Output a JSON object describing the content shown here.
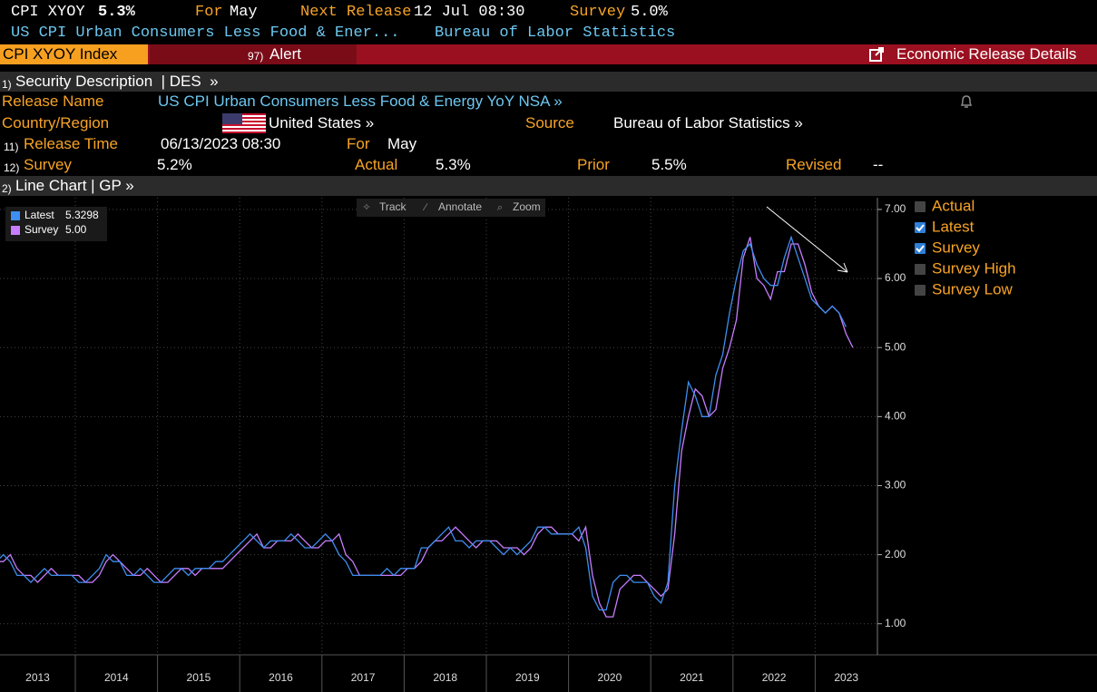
{
  "header": {
    "ticker": "CPI XYOY",
    "last": "5.3%",
    "for_label": "For",
    "for_value": "May",
    "next_release_label": "Next Release",
    "next_release_value": "12 Jul 08:30",
    "survey_label": "Survey",
    "survey_value": "5.0%",
    "name": "US CPI Urban Consumers Less Food & Ener...",
    "source": "Bureau of Labor Statistics"
  },
  "tabs": {
    "security": "CPI XYOY Index",
    "alert_num": "97)",
    "alert": "Alert",
    "details": "Economic Release Details"
  },
  "section1": {
    "num": "1)",
    "title": "Security Description  | DES  »"
  },
  "fields": {
    "release_name_label": "Release Name",
    "release_name_value": "US CPI Urban Consumers Less Food & Energy YoY NSA »",
    "country_label": "Country/Region",
    "country_value": "United States »",
    "source_label": "Source",
    "source_value": "Bureau of Labor Statistics »",
    "release_time_num": "11)",
    "release_time_label": "Release Time",
    "release_time_value": "06/13/2023 08:30",
    "for_label": "For",
    "for_value": "May",
    "survey_num": "12)",
    "survey_label": "Survey",
    "survey_value": "5.2%",
    "actual_label": "Actual",
    "actual_value": "5.3%",
    "prior_label": "Prior",
    "prior_value": "5.5%",
    "revised_label": "Revised",
    "revised_value": "--"
  },
  "section2": {
    "num": "2)",
    "title": "Line Chart | GP »"
  },
  "toolbar": [
    "Track",
    "Annotate",
    "Zoom"
  ],
  "chart_data": {
    "type": "line",
    "x_labels": [
      "2013",
      "2014",
      "2015",
      "2016",
      "2017",
      "2018",
      "2019",
      "2020",
      "2021",
      "2022",
      "2023"
    ],
    "series": [
      {
        "name": "Latest",
        "legend_value": "5.3298",
        "color": "#3d8ef0",
        "values": [
          1.9,
          2.0,
          1.9,
          1.7,
          1.7,
          1.6,
          1.7,
          1.8,
          1.7,
          1.7,
          1.7,
          1.7,
          1.6,
          1.6,
          1.7,
          1.8,
          2.0,
          1.9,
          1.9,
          1.7,
          1.7,
          1.8,
          1.7,
          1.6,
          1.6,
          1.7,
          1.8,
          1.8,
          1.7,
          1.8,
          1.8,
          1.8,
          1.9,
          1.9,
          2.0,
          2.1,
          2.2,
          2.3,
          2.2,
          2.1,
          2.2,
          2.2,
          2.2,
          2.3,
          2.2,
          2.1,
          2.1,
          2.2,
          2.3,
          2.2,
          2.0,
          1.9,
          1.7,
          1.7,
          1.7,
          1.7,
          1.7,
          1.8,
          1.7,
          1.8,
          1.8,
          1.8,
          2.1,
          2.1,
          2.2,
          2.3,
          2.4,
          2.2,
          2.2,
          2.1,
          2.2,
          2.2,
          2.2,
          2.1,
          2.0,
          2.1,
          2.0,
          2.1,
          2.2,
          2.4,
          2.4,
          2.3,
          2.3,
          2.3,
          2.3,
          2.4,
          2.1,
          1.4,
          1.2,
          1.2,
          1.6,
          1.7,
          1.7,
          1.6,
          1.6,
          1.6,
          1.4,
          1.3,
          1.6,
          3.0,
          3.8,
          4.5,
          4.3,
          4.0,
          4.0,
          4.6,
          4.9,
          5.5,
          6.0,
          6.4,
          6.5,
          6.2,
          6.0,
          5.9,
          5.9,
          6.3,
          6.6,
          6.3,
          6.0,
          5.7,
          5.6,
          5.5,
          5.6,
          5.5,
          5.3
        ]
      },
      {
        "name": "Survey",
        "legend_value": "5.00",
        "color": "#c77dff",
        "values": [
          1.9,
          1.9,
          2.0,
          1.8,
          1.7,
          1.7,
          1.6,
          1.7,
          1.8,
          1.7,
          1.7,
          1.7,
          1.7,
          1.6,
          1.6,
          1.7,
          1.9,
          2.0,
          1.9,
          1.8,
          1.7,
          1.7,
          1.8,
          1.7,
          1.6,
          1.6,
          1.7,
          1.8,
          1.8,
          1.7,
          1.8,
          1.8,
          1.8,
          1.8,
          1.9,
          2.0,
          2.1,
          2.2,
          2.3,
          2.1,
          2.1,
          2.2,
          2.2,
          2.2,
          2.3,
          2.2,
          2.1,
          2.1,
          2.2,
          2.2,
          2.3,
          2.0,
          1.9,
          1.7,
          1.7,
          1.7,
          1.7,
          1.7,
          1.7,
          1.7,
          1.8,
          1.8,
          1.9,
          2.1,
          2.2,
          2.2,
          2.3,
          2.4,
          2.3,
          2.2,
          2.1,
          2.2,
          2.2,
          2.2,
          2.1,
          2.1,
          2.1,
          2.0,
          2.1,
          2.3,
          2.4,
          2.4,
          2.3,
          2.3,
          2.3,
          2.2,
          2.4,
          1.7,
          1.3,
          1.1,
          1.1,
          1.5,
          1.6,
          1.7,
          1.7,
          1.6,
          1.5,
          1.4,
          1.5,
          2.3,
          3.5,
          4.0,
          4.4,
          4.3,
          4.0,
          4.1,
          4.7,
          5.0,
          5.4,
          6.3,
          6.6,
          6.0,
          5.9,
          5.7,
          6.1,
          6.1,
          6.5,
          6.5,
          6.2,
          5.8,
          5.6,
          5.5,
          5.6,
          5.5,
          5.2,
          5.0
        ]
      }
    ],
    "ylim": [
      0.55,
      7.17
    ],
    "yticks": [
      {
        "value": 1,
        "label": "1.00"
      },
      {
        "value": 2,
        "label": "2.00"
      },
      {
        "value": 3,
        "label": "3.00"
      },
      {
        "value": 4,
        "label": "4.00"
      },
      {
        "value": 5,
        "label": "5.00"
      },
      {
        "value": 6,
        "label": "6.00"
      },
      {
        "value": 7,
        "label": "7.00"
      }
    ],
    "grid": true,
    "checkboxes": [
      {
        "label": "Actual",
        "checked": false
      },
      {
        "label": "Latest",
        "checked": true
      },
      {
        "label": "Survey",
        "checked": true
      },
      {
        "label": "Survey High",
        "checked": false
      },
      {
        "label": "Survey Low",
        "checked": false
      }
    ]
  }
}
